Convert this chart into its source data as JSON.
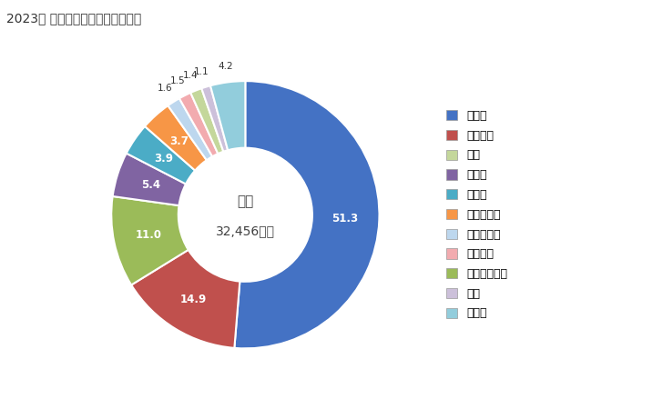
{
  "title": "2023年 輸入相手国のシェア（％）",
  "center_text_line1": "総額",
  "center_text_line2": "32,456万円",
  "legend_labels": [
    "ドイツ",
    "イタリア",
    "中国",
    "トルコ",
    "ベルー",
    "ルーマニア",
    "デンマーク",
    "フランス",
    "フィンランド",
    "豪州",
    "その他"
  ],
  "segment_order": [
    "ドイツ",
    "イタリア",
    "フィンランド",
    "トルコ",
    "ベルー",
    "ルーマニア",
    "デンマーク",
    "フランス",
    "中国",
    "豪州",
    "その他"
  ],
  "values_map": {
    "ドイツ": 51.3,
    "イタリア": 14.9,
    "フィンランド": 11.0,
    "トルコ": 5.4,
    "ベルー": 3.9,
    "ルーマニア": 3.7,
    "デンマーク": 1.6,
    "フランス": 1.5,
    "中国": 1.4,
    "豪州": 1.1,
    "その他": 4.2
  },
  "colors_map": {
    "ドイツ": "#4472C4",
    "イタリア": "#C0504D",
    "フィンランド": "#9BBB59",
    "トルコ": "#8064A2",
    "ベルー": "#4BACC6",
    "ルーマニア": "#F79646",
    "デンマーク": "#BDD7EE",
    "フランス": "#F2ABAF",
    "中国": "#C4D79B",
    "豪州": "#CCC0DA",
    "その他": "#92CDDC"
  },
  "pct_show": [
    "ドイツ",
    "イタリア",
    "フィンランド",
    "トルコ",
    "ベルー",
    "ルーマニア"
  ],
  "pct_outside": [
    "中国",
    "豪州",
    "その他",
    "フランス",
    "デンマーク"
  ],
  "title_fontsize": 10,
  "legend_fontsize": 9
}
